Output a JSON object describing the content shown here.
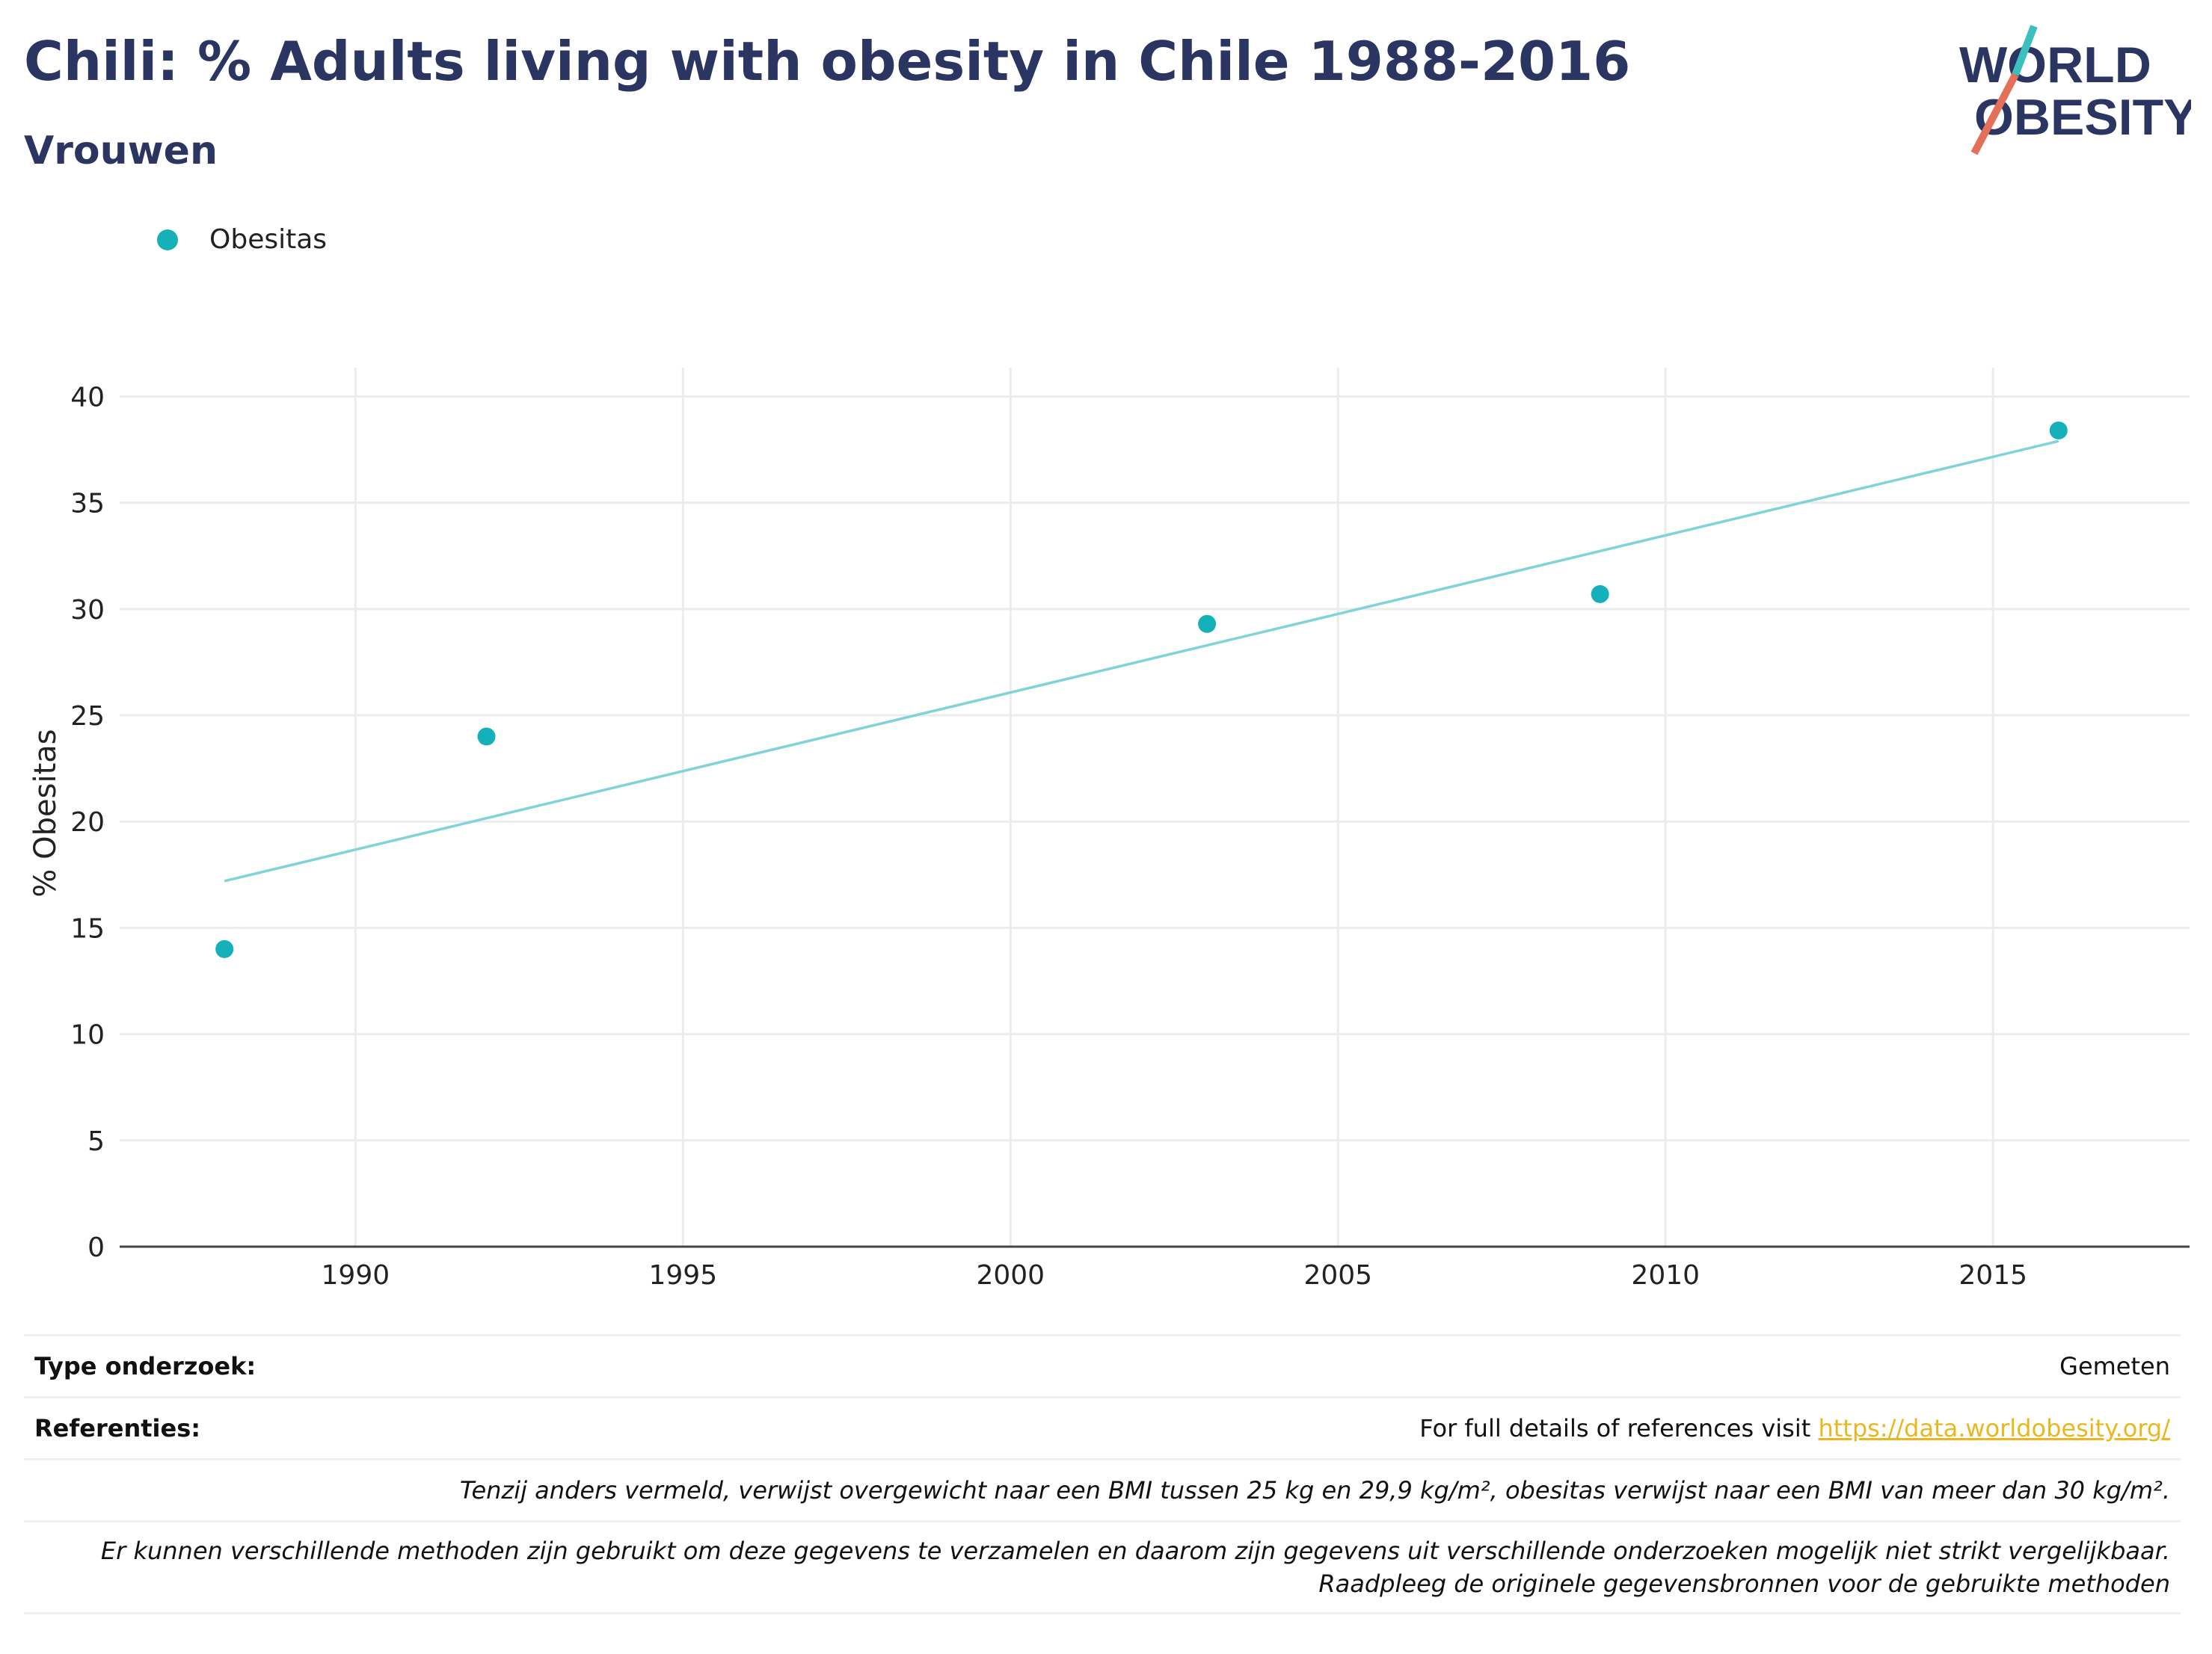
{
  "header": {
    "title": "Chili: % Adults living with obesity in Chile 1988-2016",
    "subtitle": "Vrouwen"
  },
  "logo": {
    "line1": "WORLD",
    "line2": "OBESITY"
  },
  "legend": {
    "items": [
      {
        "label": "Obesitas",
        "color": "#14b1bb"
      }
    ]
  },
  "chart_data": {
    "type": "scatter",
    "title": "Chili: % Adults living with obesity in Chile 1988-2016",
    "subtitle": "Vrouwen",
    "xlabel": "",
    "ylabel": "% Obesitas",
    "xlim": [
      1986.4,
      2018
    ],
    "ylim": [
      0,
      41
    ],
    "x_ticks": [
      1990,
      1995,
      2000,
      2005,
      2010,
      2015
    ],
    "y_ticks": [
      0,
      5,
      10,
      15,
      20,
      25,
      30,
      35,
      40
    ],
    "grid": true,
    "legend_position": "top-left",
    "series": [
      {
        "name": "Obesitas",
        "color": "#14b1bb",
        "points": [
          {
            "x": 1988,
            "y": 14.0
          },
          {
            "x": 1992,
            "y": 24.0
          },
          {
            "x": 2003,
            "y": 29.3
          },
          {
            "x": 2009,
            "y": 30.7
          },
          {
            "x": 2016,
            "y": 38.4
          }
        ]
      }
    ],
    "trendline": {
      "color": "#7fd3d9",
      "start": {
        "x": 1988,
        "y": 17.2
      },
      "end": {
        "x": 2016,
        "y": 37.9
      }
    }
  },
  "footer": {
    "type_label": "Type onderzoek:",
    "type_value": "Gemeten",
    "ref_label": "Referenties:",
    "ref_text": "For full details of references visit ",
    "ref_link": "https://data.worldobesity.org/",
    "note1": "Tenzij anders vermeld, verwijst overgewicht naar een BMI tussen 25 kg en 29,9 kg/m², obesitas verwijst naar een BMI van meer dan 30 kg/m².",
    "note2": "Er kunnen verschillende methoden zijn gebruikt om deze gegevens te verzamelen en daarom zijn gegevens uit verschillende onderzoeken mogelijk niet strikt vergelijkbaar. Raadpleeg de originele gegevensbronnen voor de gebruikte methoden"
  }
}
